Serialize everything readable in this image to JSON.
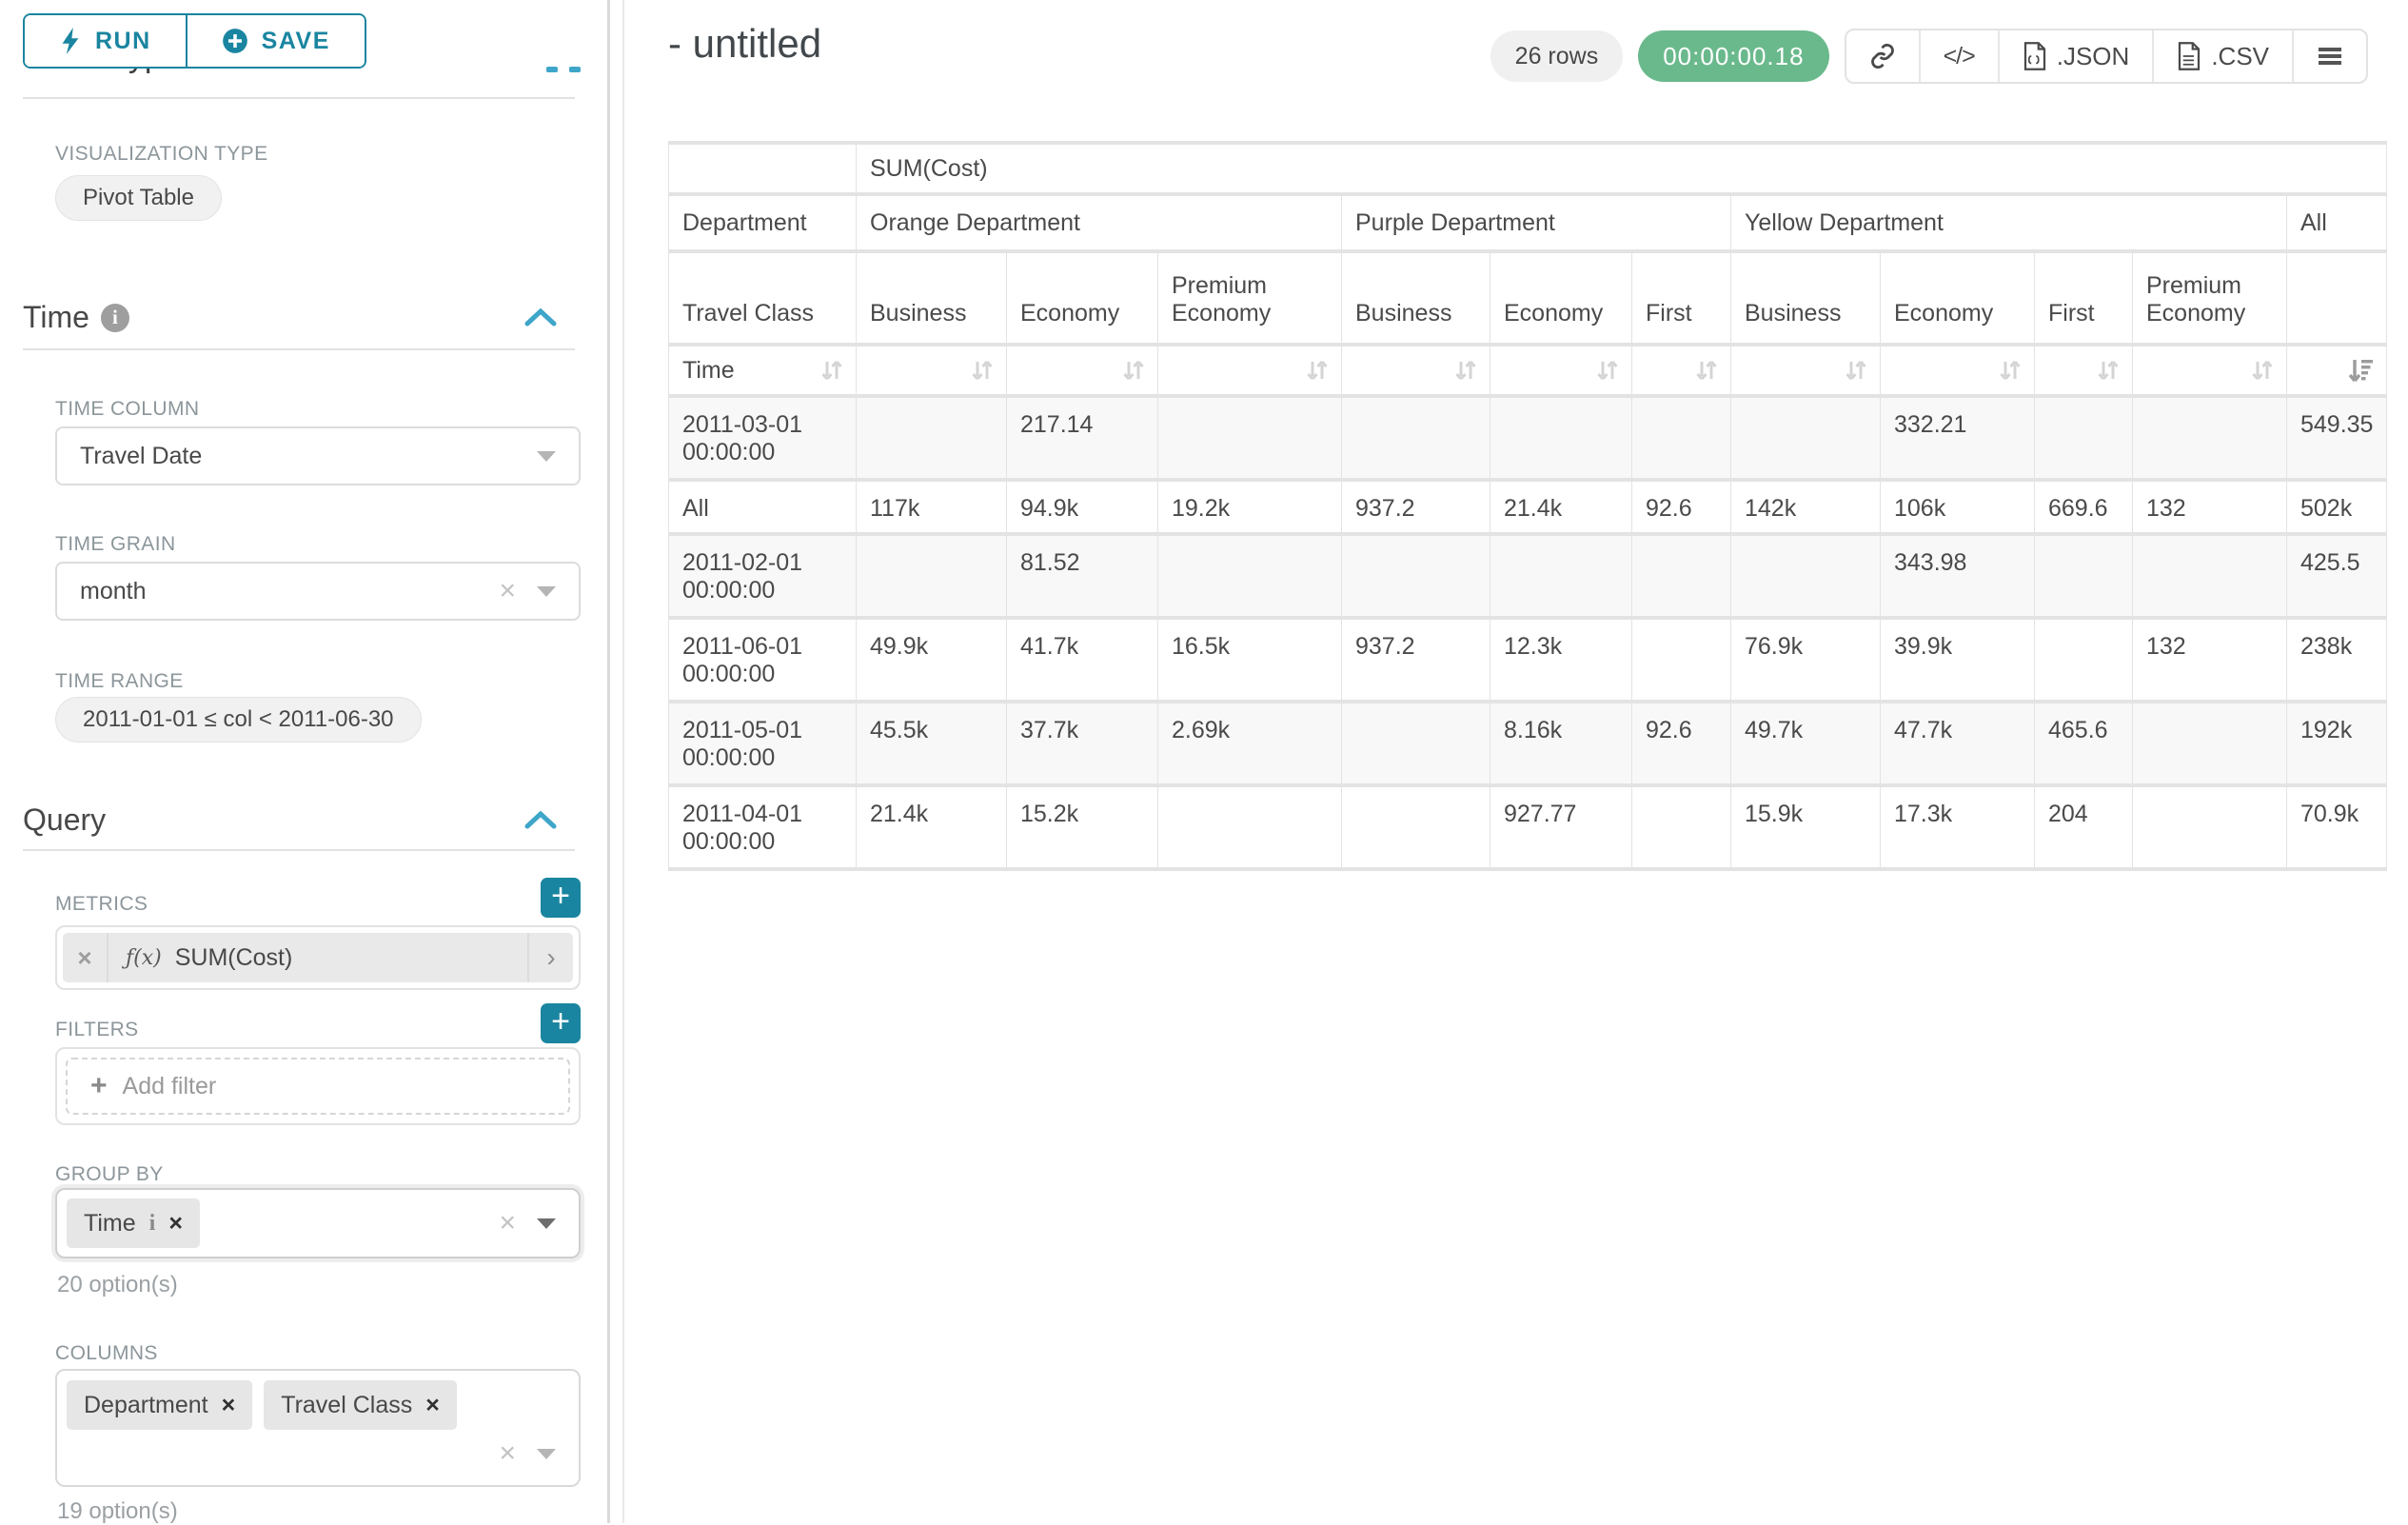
{
  "sidebar": {
    "run_label": "RUN",
    "save_label": "SAVE",
    "clipped_heading": "Chart Type",
    "viz": {
      "label": "VISUALIZATION TYPE",
      "value": "Pivot Table"
    },
    "time_section": {
      "title": "Time",
      "time_column": {
        "label": "TIME COLUMN",
        "value": "Travel Date"
      },
      "time_grain": {
        "label": "TIME GRAIN",
        "value": "month"
      },
      "time_range": {
        "label": "TIME RANGE",
        "value": "2011-01-01 ≤ col < 2011-06-30"
      }
    },
    "query_section": {
      "title": "Query",
      "metrics": {
        "label": "METRICS",
        "fx": "ƒ(x)",
        "value": "SUM(Cost)"
      },
      "filters": {
        "label": "FILTERS",
        "placeholder": "Add filter"
      },
      "group_by": {
        "label": "GROUP BY",
        "tags": [
          "Time"
        ],
        "hint": "20 option(s)"
      },
      "columns": {
        "label": "COLUMNS",
        "tags": [
          "Department",
          "Travel Class"
        ],
        "hint": "19 option(s)"
      }
    }
  },
  "header": {
    "title": "- untitled",
    "rows_badge": "26 rows",
    "timer": "00:00:00.18",
    "export": {
      "json_label": ".JSON",
      "csv_label": ".CSV"
    }
  },
  "colors": {
    "accent": "#1a85a0",
    "timer_green": "#6ab98c"
  },
  "pivot": {
    "metric_header": "SUM(Cost)",
    "dept_label": "Department",
    "class_label": "Travel Class",
    "time_label": "Time",
    "departments": [
      {
        "name": "Orange Department",
        "span": 3
      },
      {
        "name": "Purple Department",
        "span": 3
      },
      {
        "name": "Yellow Department",
        "span": 4
      },
      {
        "name": "All",
        "span": 1
      }
    ],
    "classes": [
      "Business",
      "Economy",
      "Premium Economy",
      "Business",
      "Economy",
      "First",
      "Business",
      "Economy",
      "First",
      "Premium Economy",
      ""
    ],
    "rows": [
      {
        "label": "2011-03-01 00:00:00",
        "values": [
          "",
          "217.14",
          "",
          "",
          "",
          "",
          "",
          "332.21",
          "",
          "",
          "549.35"
        ]
      },
      {
        "label": "All",
        "values": [
          "117k",
          "94.9k",
          "19.2k",
          "937.2",
          "21.4k",
          "92.6",
          "142k",
          "106k",
          "669.6",
          "132",
          "502k"
        ]
      },
      {
        "label": "2011-02-01 00:00:00",
        "values": [
          "",
          "81.52",
          "",
          "",
          "",
          "",
          "",
          "343.98",
          "",
          "",
          "425.5"
        ]
      },
      {
        "label": "2011-06-01 00:00:00",
        "values": [
          "49.9k",
          "41.7k",
          "16.5k",
          "937.2",
          "12.3k",
          "",
          "76.9k",
          "39.9k",
          "",
          "132",
          "238k"
        ]
      },
      {
        "label": "2011-05-01 00:00:00",
        "values": [
          "45.5k",
          "37.7k",
          "2.69k",
          "",
          "8.16k",
          "92.6",
          "49.7k",
          "47.7k",
          "465.6",
          "",
          "192k"
        ]
      },
      {
        "label": "2011-04-01 00:00:00",
        "values": [
          "21.4k",
          "15.2k",
          "",
          "",
          "927.77",
          "",
          "15.9k",
          "17.3k",
          "204",
          "",
          "70.9k"
        ]
      }
    ]
  }
}
